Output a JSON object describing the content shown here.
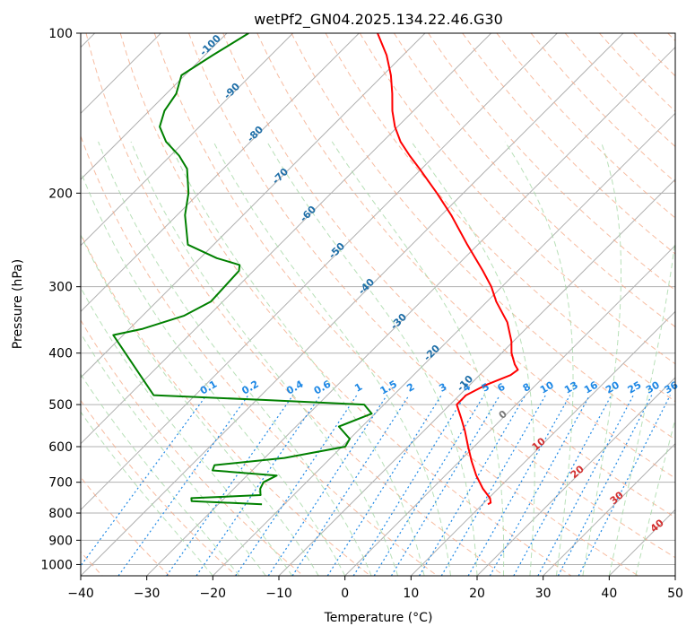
{
  "chart_data": {
    "type": "line",
    "title": "wetPf2_GN04.2025.134.22.46.G30",
    "xlabel": "Temperature (°C)",
    "ylabel": "Pressure (hPa)",
    "xlim": [
      -40,
      50
    ],
    "ylim": [
      1050,
      100
    ],
    "y_scale": "log",
    "x_ticks": [
      -40,
      -30,
      -20,
      -10,
      0,
      10,
      20,
      30,
      40,
      50
    ],
    "y_ticks": [
      100,
      200,
      300,
      400,
      500,
      600,
      700,
      800,
      900,
      1000
    ],
    "grid": true,
    "skew_deg": 45,
    "temperature_series": {
      "color": "#ff0000",
      "points": [
        {
          "p": 100,
          "t": -77.2
        },
        {
          "p": 110,
          "t": -72.5
        },
        {
          "p": 120,
          "t": -68.8
        },
        {
          "p": 130,
          "t": -65.8
        },
        {
          "p": 140,
          "t": -63.2
        },
        {
          "p": 150,
          "t": -60.4
        },
        {
          "p": 160,
          "t": -57.3
        },
        {
          "p": 170,
          "t": -53.8
        },
        {
          "p": 180,
          "t": -50.3
        },
        {
          "p": 200,
          "t": -44.0
        },
        {
          "p": 220,
          "t": -38.5
        },
        {
          "p": 250,
          "t": -31.6
        },
        {
          "p": 280,
          "t": -25.3
        },
        {
          "p": 300,
          "t": -21.6
        },
        {
          "p": 320,
          "t": -18.6
        },
        {
          "p": 350,
          "t": -13.8
        },
        {
          "p": 380,
          "t": -10.3
        },
        {
          "p": 400,
          "t": -8.5
        },
        {
          "p": 420,
          "t": -6.3
        },
        {
          "p": 430,
          "t": -5.0
        },
        {
          "p": 440,
          "t": -5.3
        },
        {
          "p": 460,
          "t": -7.6
        },
        {
          "p": 480,
          "t": -9.0
        },
        {
          "p": 500,
          "t": -9.0
        },
        {
          "p": 530,
          "t": -6.3
        },
        {
          "p": 560,
          "t": -3.8
        },
        {
          "p": 600,
          "t": -0.9
        },
        {
          "p": 640,
          "t": 1.9
        },
        {
          "p": 680,
          "t": 4.7
        },
        {
          "p": 720,
          "t": 7.7
        },
        {
          "p": 750,
          "t": 10.2
        },
        {
          "p": 765,
          "t": 11.0
        },
        {
          "p": 770,
          "t": 10.8
        }
      ]
    },
    "dewpoint_series": {
      "color": "#008000",
      "points": [
        {
          "p": 100,
          "t": -96.7
        },
        {
          "p": 110,
          "t": -98.8
        },
        {
          "p": 120,
          "t": -100.5
        },
        {
          "p": 130,
          "t": -98.5
        },
        {
          "p": 140,
          "t": -97.7
        },
        {
          "p": 150,
          "t": -96.0
        },
        {
          "p": 160,
          "t": -92.8
        },
        {
          "p": 170,
          "t": -88.7
        },
        {
          "p": 180,
          "t": -85.5
        },
        {
          "p": 200,
          "t": -81.6
        },
        {
          "p": 220,
          "t": -78.8
        },
        {
          "p": 250,
          "t": -73.9
        },
        {
          "p": 265,
          "t": -67.5
        },
        {
          "p": 273,
          "t": -63.0
        },
        {
          "p": 280,
          "t": -62.2
        },
        {
          "p": 300,
          "t": -62.0
        },
        {
          "p": 320,
          "t": -61.8
        },
        {
          "p": 340,
          "t": -63.7
        },
        {
          "p": 360,
          "t": -68.0
        },
        {
          "p": 370,
          "t": -71.5
        },
        {
          "p": 480,
          "t": -56.3
        },
        {
          "p": 490,
          "t": -39.0
        },
        {
          "p": 500,
          "t": -23.0
        },
        {
          "p": 520,
          "t": -20.5
        },
        {
          "p": 550,
          "t": -23.5
        },
        {
          "p": 580,
          "t": -20.0
        },
        {
          "p": 600,
          "t": -19.5
        },
        {
          "p": 630,
          "t": -27.0
        },
        {
          "p": 650,
          "t": -36.5
        },
        {
          "p": 665,
          "t": -36.0
        },
        {
          "p": 680,
          "t": -25.5
        },
        {
          "p": 700,
          "t": -26.5
        },
        {
          "p": 720,
          "t": -26.0
        },
        {
          "p": 740,
          "t": -25.0
        },
        {
          "p": 750,
          "t": -35.0
        },
        {
          "p": 760,
          "t": -34.5
        },
        {
          "p": 770,
          "t": -23.4
        }
      ]
    },
    "mixing_ratio_labels": [
      "0.1",
      "0.2",
      "0.4",
      "0.6",
      "1",
      "1.5",
      "2",
      "3",
      "4",
      "5",
      "6",
      "8",
      "10",
      "13",
      "16",
      "20",
      "25",
      "30",
      "36"
    ],
    "mixing_ratio_values": [
      0.1,
      0.2,
      0.4,
      0.6,
      1,
      1.5,
      2,
      3,
      4,
      5,
      6,
      8,
      10,
      13,
      16,
      20,
      25,
      30,
      36
    ],
    "dry_adiabat_labels": [
      "-100",
      "-90",
      "-80",
      "-70",
      "-60",
      "-50",
      "-40",
      "-30",
      "-20",
      "-10"
    ],
    "moist_adiabat_labels": [
      "0",
      "10",
      "20",
      "30",
      "40"
    ],
    "colors": {
      "temperature": "#ff0000",
      "dewpoint": "#008000",
      "isotherm_grid": "#b0b0b0",
      "dry_adiabat": "#f4a582",
      "moist_adiabat": "#a6d8a6",
      "mixing_ratio": "#1e88e5",
      "dry_label": "#1f6fa8",
      "moist_label": "#d32f2f",
      "zero_label": "#777777"
    }
  }
}
